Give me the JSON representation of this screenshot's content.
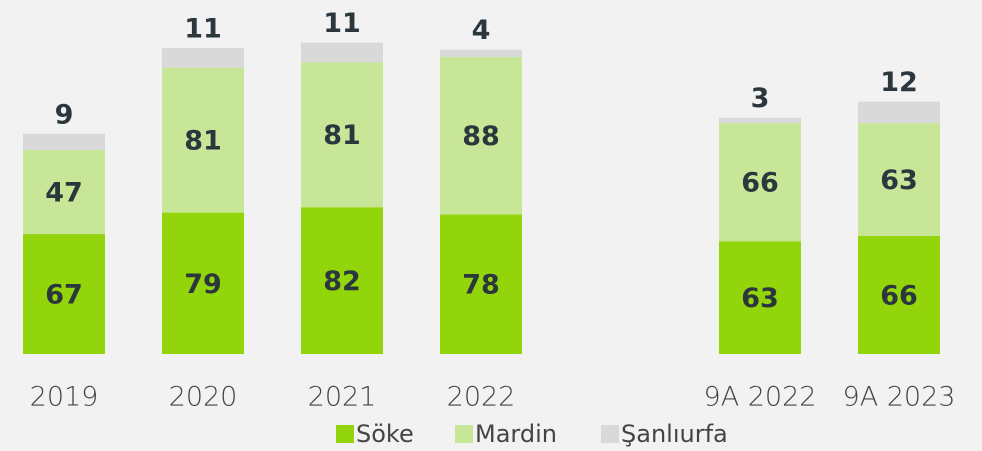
{
  "chart_data": {
    "type": "stacked_bar",
    "categories": [
      "2019",
      "2020",
      "2021",
      "2022",
      "9A 2022",
      "9A 2023"
    ],
    "series": [
      {
        "name": "Söke",
        "color": "#92d50a",
        "values": [
          67,
          79,
          82,
          78,
          63,
          66
        ]
      },
      {
        "name": "Mardin",
        "color": "#c8e697",
        "values": [
          47,
          81,
          81,
          88,
          66,
          63
        ]
      },
      {
        "name": "Şanlıurfa",
        "color": "#d9d9d9",
        "values": [
          9,
          11,
          11,
          4,
          3,
          12
        ]
      }
    ],
    "legend": "bottom"
  }
}
